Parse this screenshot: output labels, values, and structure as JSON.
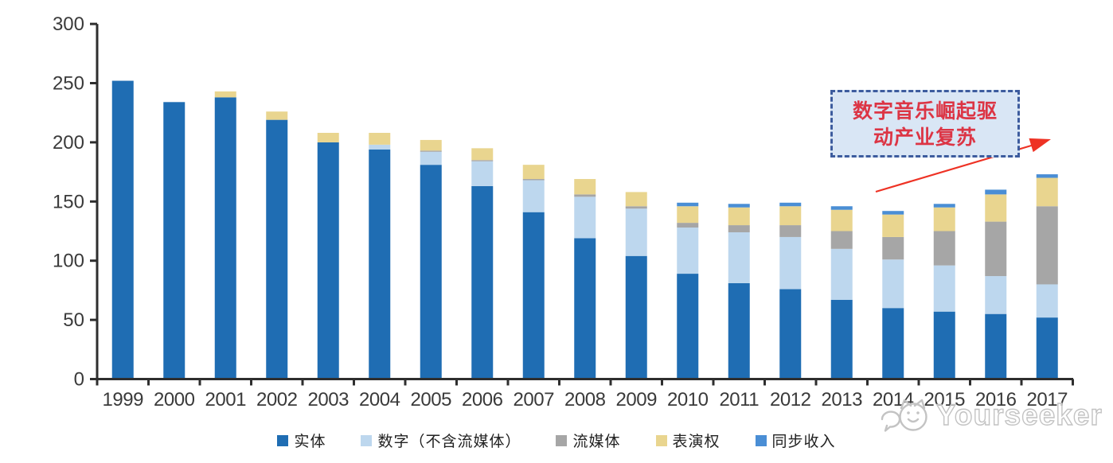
{
  "chart_data": {
    "type": "bar",
    "stacked": true,
    "categories": [
      "1999",
      "2000",
      "2001",
      "2002",
      "2003",
      "2004",
      "2005",
      "2006",
      "2007",
      "2008",
      "2009",
      "2010",
      "2011",
      "2012",
      "2013",
      "2014",
      "2015",
      "2016",
      "2017"
    ],
    "series": [
      {
        "key": "physical",
        "name": "实体",
        "color": "#1F6DB3",
        "values": [
          252,
          234,
          238,
          219,
          200,
          194,
          181,
          163,
          141,
          119,
          104,
          89,
          81,
          76,
          67,
          60,
          57,
          55,
          52
        ]
      },
      {
        "key": "digital-excl-streaming",
        "name": "数字（不含流媒体）",
        "color": "#BDD7EE",
        "values": [
          0,
          0,
          0,
          0,
          0,
          4,
          11,
          21,
          27,
          35,
          40,
          39,
          43,
          44,
          43,
          41,
          39,
          32,
          28
        ]
      },
      {
        "key": "streaming",
        "name": "流媒体",
        "color": "#A6A6A6",
        "values": [
          0,
          0,
          0,
          0,
          0,
          0,
          1,
          1,
          1,
          2,
          2,
          4,
          6,
          10,
          15,
          19,
          29,
          46,
          66
        ]
      },
      {
        "key": "performance-rights",
        "name": "表演权",
        "color": "#E9D58F",
        "values": [
          0,
          0,
          5,
          7,
          8,
          10,
          9,
          10,
          12,
          13,
          12,
          14,
          15,
          16,
          18,
          19,
          20,
          23,
          24
        ]
      },
      {
        "key": "sync-revenue",
        "name": "同步收入",
        "color": "#4A8ED5",
        "values": [
          0,
          0,
          0,
          0,
          0,
          0,
          0,
          0,
          0,
          0,
          0,
          3,
          3,
          3,
          3,
          3,
          3,
          4,
          3
        ]
      }
    ],
    "totals": [
      252,
      234,
      243,
      226,
      208,
      208,
      202,
      195,
      181,
      169,
      158,
      149,
      148,
      149,
      146,
      142,
      148,
      160,
      173
    ],
    "ylim": [
      0,
      300
    ],
    "yticks": [
      0,
      50,
      100,
      150,
      200,
      250,
      300
    ],
    "grid": false,
    "legend_position": "bottom",
    "axis_color": "#2e2e2e",
    "tick_label_color": "#3a3a3a"
  },
  "annotation": {
    "full_text": "数字音乐崛起驱动产业复苏",
    "line1": "数字音乐崛起驱",
    "line2": "动产业复苏",
    "box_fill": "#d9e6f5",
    "border_color": "#3d5c9e",
    "text_color": "#dc3545",
    "arrow_color": "#ee3224"
  },
  "watermark": {
    "text": "Yourseeker",
    "color": "#c3c3c3"
  }
}
